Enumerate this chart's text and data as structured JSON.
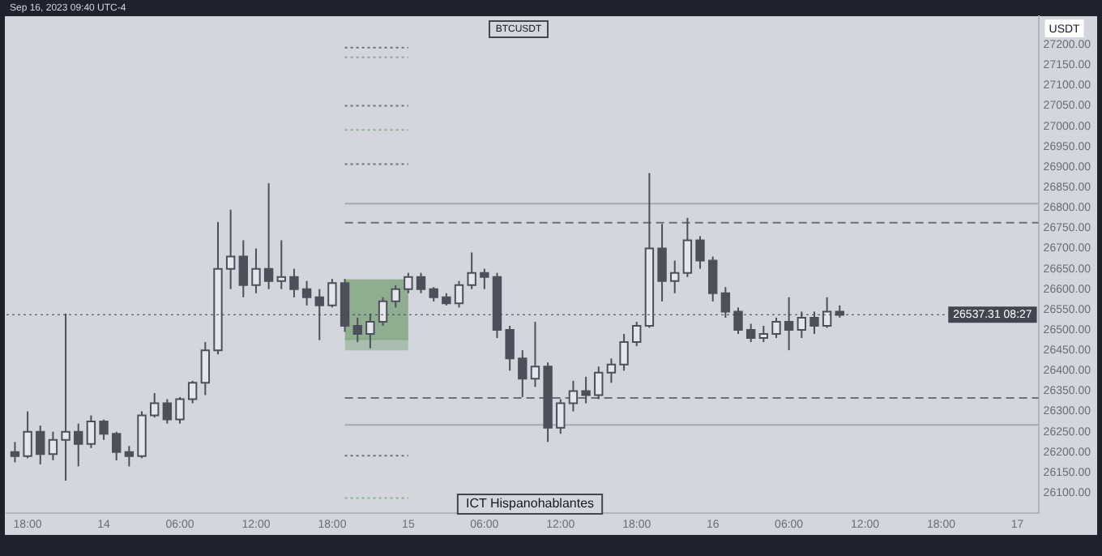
{
  "chart_data": {
    "type": "candlestick",
    "title": "BTCUSDT",
    "ylabel": "USDT",
    "annotations": [
      "Sep 16, 2023 09:40 UTC-4",
      "ICT Hispanohablantes"
    ],
    "x": [
      "2023-09-13T17:00",
      "2023-09-13T18:00",
      "2023-09-13T19:00",
      "2023-09-13T20:00",
      "2023-09-13T21:00",
      "2023-09-13T22:00",
      "2023-09-13T23:00",
      "2023-09-14T00:00",
      "2023-09-14T01:00",
      "2023-09-14T02:00",
      "2023-09-14T03:00",
      "2023-09-14T04:00",
      "2023-09-14T05:00",
      "2023-09-14T06:00",
      "2023-09-14T07:00",
      "2023-09-14T08:00",
      "2023-09-14T09:00",
      "2023-09-14T10:00",
      "2023-09-14T11:00",
      "2023-09-14T12:00",
      "2023-09-14T13:00",
      "2023-09-14T14:00",
      "2023-09-14T15:00",
      "2023-09-14T16:00",
      "2023-09-14T17:00",
      "2023-09-14T18:00",
      "2023-09-14T19:00",
      "2023-09-14T20:00",
      "2023-09-14T21:00",
      "2023-09-14T22:00",
      "2023-09-14T23:00",
      "2023-09-15T00:00",
      "2023-09-15T01:00",
      "2023-09-15T02:00",
      "2023-09-15T03:00",
      "2023-09-15T04:00",
      "2023-09-15T05:00",
      "2023-09-15T06:00",
      "2023-09-15T07:00",
      "2023-09-15T08:00",
      "2023-09-15T09:00",
      "2023-09-15T10:00",
      "2023-09-15T11:00",
      "2023-09-15T12:00",
      "2023-09-15T13:00",
      "2023-09-15T14:00",
      "2023-09-15T15:00",
      "2023-09-15T16:00",
      "2023-09-15T17:00",
      "2023-09-15T18:00",
      "2023-09-15T19:00",
      "2023-09-15T20:00",
      "2023-09-15T21:00",
      "2023-09-15T22:00",
      "2023-09-15T23:00",
      "2023-09-16T00:00",
      "2023-09-16T01:00",
      "2023-09-16T02:00",
      "2023-09-16T03:00",
      "2023-09-16T04:00",
      "2023-09-16T05:00",
      "2023-09-16T06:00",
      "2023-09-16T07:00",
      "2023-09-16T08:00",
      "2023-09-16T09:00",
      "2023-09-16T10:00"
    ],
    "ohlc": [
      [
        26200,
        26225,
        26175,
        26190
      ],
      [
        26190,
        26300,
        26185,
        26250
      ],
      [
        26250,
        26265,
        26170,
        26195
      ],
      [
        26195,
        26250,
        26180,
        26230
      ],
      [
        26230,
        26540,
        26130,
        26250
      ],
      [
        26250,
        26270,
        26165,
        26220
      ],
      [
        26220,
        26290,
        26210,
        26275
      ],
      [
        26275,
        26280,
        26230,
        26245
      ],
      [
        26245,
        26250,
        26180,
        26200
      ],
      [
        26200,
        26215,
        26165,
        26190
      ],
      [
        26190,
        26300,
        26185,
        26290
      ],
      [
        26290,
        26345,
        26285,
        26320
      ],
      [
        26320,
        26330,
        26270,
        26280
      ],
      [
        26280,
        26335,
        26270,
        26330
      ],
      [
        26330,
        26375,
        26320,
        26370
      ],
      [
        26370,
        26470,
        26340,
        26450
      ],
      [
        26450,
        26765,
        26440,
        26650
      ],
      [
        26650,
        26795,
        26600,
        26680
      ],
      [
        26680,
        26720,
        26580,
        26610
      ],
      [
        26610,
        26700,
        26590,
        26650
      ],
      [
        26650,
        26860,
        26600,
        26620
      ],
      [
        26620,
        26720,
        26600,
        26630
      ],
      [
        26630,
        26650,
        26580,
        26600
      ],
      [
        26600,
        26620,
        26560,
        26580
      ],
      [
        26580,
        26600,
        26475,
        26560
      ],
      [
        26560,
        26625,
        26555,
        26615
      ],
      [
        26615,
        26625,
        26495,
        26510
      ],
      [
        26510,
        26530,
        26470,
        26490
      ],
      [
        26490,
        26540,
        26455,
        26520
      ],
      [
        26520,
        26580,
        26510,
        26570
      ],
      [
        26570,
        26610,
        26555,
        26600
      ],
      [
        26600,
        26640,
        26590,
        26630
      ],
      [
        26630,
        26640,
        26590,
        26600
      ],
      [
        26600,
        26605,
        26570,
        26580
      ],
      [
        26580,
        26590,
        26560,
        26565
      ],
      [
        26565,
        26620,
        26555,
        26610
      ],
      [
        26610,
        26690,
        26600,
        26640
      ],
      [
        26640,
        26650,
        26600,
        26630
      ],
      [
        26630,
        26640,
        26480,
        26500
      ],
      [
        26500,
        26510,
        26400,
        26430
      ],
      [
        26430,
        26450,
        26335,
        26380
      ],
      [
        26380,
        26520,
        26360,
        26410
      ],
      [
        26410,
        26420,
        26225,
        26260
      ],
      [
        26260,
        26330,
        26245,
        26320
      ],
      [
        26320,
        26375,
        26300,
        26350
      ],
      [
        26350,
        26385,
        26320,
        26340
      ],
      [
        26340,
        26410,
        26330,
        26395
      ],
      [
        26395,
        26430,
        26370,
        26415
      ],
      [
        26415,
        26490,
        26400,
        26470
      ],
      [
        26470,
        26520,
        26460,
        26510
      ],
      [
        26510,
        26885,
        26505,
        26700
      ],
      [
        26700,
        26760,
        26570,
        26620
      ],
      [
        26620,
        26670,
        26590,
        26640
      ],
      [
        26640,
        26775,
        26630,
        26720
      ],
      [
        26720,
        26730,
        26650,
        26670
      ],
      [
        26670,
        26680,
        26570,
        26590
      ],
      [
        26590,
        26605,
        26530,
        26545
      ],
      [
        26545,
        26555,
        26490,
        26500
      ],
      [
        26500,
        26515,
        26470,
        26480
      ],
      [
        26480,
        26510,
        26470,
        26490
      ],
      [
        26490,
        26530,
        26480,
        26520
      ],
      [
        26520,
        26580,
        26450,
        26500
      ],
      [
        26500,
        26545,
        26480,
        26530
      ],
      [
        26530,
        26545,
        26490,
        26510
      ],
      [
        26510,
        26580,
        26505,
        26545
      ],
      [
        26545,
        26560,
        26530,
        26537
      ]
    ],
    "series": [
      {
        "type": "line",
        "color": "#86a886",
        "x": [
          "2023-09-14T19:00",
          "2023-09-15T00:00"
        ],
        "values": [
          26477,
          26477
        ],
        "lower": [
          26450,
          26450
        ],
        "upper": [
          26624,
          26624
        ]
      },
      {
        "type": "line",
        "color": "#6b6f7a",
        "line_style": "dotted",
        "x": [
          "2023-09-14T19:00",
          "2023-09-15T00:00"
        ],
        "values": [
          27193,
          27193
        ]
      },
      {
        "type": "line",
        "color": "#9a9ea8",
        "line_style": "dotted",
        "x": [
          "2023-09-14T19:00",
          "2023-09-15T00:00"
        ],
        "values": [
          27169,
          27169
        ]
      },
      {
        "type": "line",
        "color": "#6b6f7a",
        "line_style": "dotted",
        "x": [
          "2023-09-14T19:00",
          "2023-09-15T00:00"
        ],
        "values": [
          27050,
          27050
        ]
      },
      {
        "type": "line",
        "color": "#8fb08f",
        "line_style": "dotted",
        "x": [
          "2023-09-14T19:00",
          "2023-09-15T00:00"
        ],
        "values": [
          26991,
          26991
        ]
      },
      {
        "type": "line",
        "color": "#6b6f7a",
        "line_style": "dotted",
        "x": [
          "2023-09-14T19:00",
          "2023-09-15T00:00"
        ],
        "values": [
          26907,
          26907
        ]
      },
      {
        "type": "line",
        "color": "#a4a8b2",
        "line_style": "solid",
        "x": [
          "2023-09-14T19:00",
          "2023-09-17T01:40"
        ],
        "values": [
          26810,
          26810
        ]
      },
      {
        "type": "line",
        "color": "#6b6f7a",
        "line_style": "dashed",
        "x": [
          "2023-09-14T19:00",
          "2023-09-17T01:40"
        ],
        "values": [
          26763,
          26763
        ]
      },
      {
        "type": "line",
        "color": "#6b6f7a",
        "line_style": "dashed",
        "x": [
          "2023-09-14T19:00",
          "2023-09-17T01:40"
        ],
        "values": [
          26333,
          26333
        ]
      },
      {
        "type": "line",
        "color": "#a4a8b2",
        "line_style": "solid",
        "x": [
          "2023-09-14T19:00",
          "2023-09-17T01:40"
        ],
        "values": [
          26267,
          26267
        ]
      },
      {
        "type": "line",
        "color": "#6b6f7a",
        "line_style": "dotted",
        "x": [
          "2023-09-14T19:00",
          "2023-09-15T00:00"
        ],
        "values": [
          26191,
          26191
        ]
      },
      {
        "type": "line",
        "color": "#8fb08f",
        "line_style": "dotted",
        "x": [
          "2023-09-14T19:00",
          "2023-09-15T00:00"
        ],
        "values": [
          26087,
          26087
        ]
      }
    ],
    "ref_lines": [
      {
        "axis": "y",
        "value": 26537.31,
        "label": "26537.31 08:27",
        "color": "#434651",
        "line_style": "dotted"
      }
    ],
    "xlim": [
      "2023-09-13T16:20",
      "2023-09-17T01:40"
    ],
    "xticks": [
      {
        "value": "2023-09-13T18:00",
        "label": "18:00"
      },
      {
        "value": "2023-09-14T00:00",
        "label": "14"
      },
      {
        "value": "2023-09-14T06:00",
        "label": "06:00"
      },
      {
        "value": "2023-09-14T12:00",
        "label": "12:00"
      },
      {
        "value": "2023-09-14T18:00",
        "label": "18:00"
      },
      {
        "value": "2023-09-15T00:00",
        "label": "15"
      },
      {
        "value": "2023-09-15T06:00",
        "label": "06:00"
      },
      {
        "value": "2023-09-15T12:00",
        "label": "12:00"
      },
      {
        "value": "2023-09-15T18:00",
        "label": "18:00"
      },
      {
        "value": "2023-09-16T00:00",
        "label": "16"
      },
      {
        "value": "2023-09-16T06:00",
        "label": "06:00"
      },
      {
        "value": "2023-09-16T12:00",
        "label": "12:00"
      },
      {
        "value": "2023-09-16T18:00",
        "label": "18:00"
      },
      {
        "value": "2023-09-17T00:00",
        "label": "17"
      }
    ],
    "ylim": [
      26050,
      27270
    ],
    "yticks": [
      {
        "value": 26100,
        "label": "26100.00"
      },
      {
        "value": 26150,
        "label": "26150.00"
      },
      {
        "value": 26200,
        "label": "26200.00"
      },
      {
        "value": 26250,
        "label": "26250.00"
      },
      {
        "value": 26300,
        "label": "26300.00"
      },
      {
        "value": 26350,
        "label": "26350.00"
      },
      {
        "value": 26400,
        "label": "26400.00"
      },
      {
        "value": 26450,
        "label": "26450.00"
      },
      {
        "value": 26500,
        "label": "26500.00"
      },
      {
        "value": 26550,
        "label": "26550.00"
      },
      {
        "value": 26600,
        "label": "26600.00"
      },
      {
        "value": 26650,
        "label": "26650.00"
      },
      {
        "value": 26700,
        "label": "26700.00"
      },
      {
        "value": 26750,
        "label": "26750.00"
      },
      {
        "value": 26800,
        "label": "26800.00"
      },
      {
        "value": 26850,
        "label": "26850.00"
      },
      {
        "value": 26900,
        "label": "26900.00"
      },
      {
        "value": 26950,
        "label": "26950.00"
      },
      {
        "value": 27000,
        "label": "27000.00"
      },
      {
        "value": 27050,
        "label": "27050.00"
      },
      {
        "value": 27100,
        "label": "27100.00"
      },
      {
        "value": 27150,
        "label": "27150.00"
      },
      {
        "value": 27200,
        "label": "27200.00"
      }
    ],
    "color": "#4c505b",
    "colors": [
      "#4c505b",
      "#e4e6eb",
      "#4c505b",
      "#e4e6eb",
      "#e4e6eb",
      "#4c505b",
      "#e4e6eb",
      "#4c505b",
      "#4c505b",
      "#4c505b",
      "#e4e6eb",
      "#e4e6eb",
      "#4c505b",
      "#e4e6eb",
      "#e4e6eb",
      "#e4e6eb",
      "#e4e6eb",
      "#e4e6eb",
      "#4c505b",
      "#e4e6eb",
      "#4c505b",
      "#e4e6eb",
      "#4c505b",
      "#4c505b",
      "#4c505b",
      "#e4e6eb",
      "#4c505b",
      "#4c505b",
      "#e4e6eb",
      "#e4e6eb",
      "#e4e6eb",
      "#e4e6eb",
      "#4c505b",
      "#4c505b",
      "#4c505b",
      "#e4e6eb",
      "#e4e6eb",
      "#4c505b",
      "#4c505b",
      "#4c505b",
      "#4c505b",
      "#e4e6eb",
      "#4c505b",
      "#e4e6eb",
      "#e4e6eb",
      "#4c505b",
      "#e4e6eb",
      "#e4e6eb",
      "#e4e6eb",
      "#e4e6eb",
      "#e4e6eb",
      "#4c505b",
      "#e4e6eb",
      "#e4e6eb",
      "#4c505b",
      "#4c505b",
      "#4c505b",
      "#4c505b",
      "#4c505b",
      "#e4e6eb",
      "#e4e6eb",
      "#4c505b",
      "#e4e6eb",
      "#4c505b",
      "#e4e6eb",
      "#4c505b"
    ]
  }
}
